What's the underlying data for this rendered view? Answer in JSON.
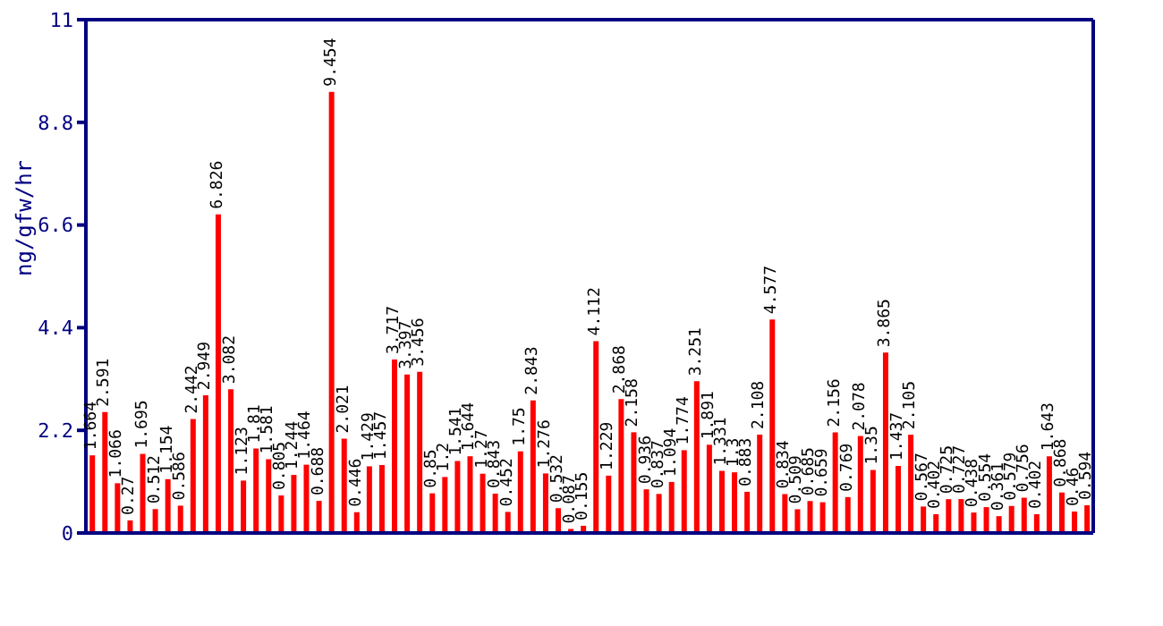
{
  "chart_data": {
    "type": "bar",
    "ylabel": "ng/gfw/hr",
    "color": "#ff0000",
    "categories": [
      null,
      null,
      null,
      null,
      null,
      null,
      null,
      null,
      null,
      null,
      null,
      null,
      null,
      null,
      null,
      null,
      null,
      null,
      null,
      null,
      null,
      null,
      null,
      null,
      null,
      null,
      null,
      null,
      null,
      null,
      null,
      null,
      null,
      null,
      null,
      null,
      null,
      null,
      null,
      null,
      null,
      null,
      null,
      null,
      null,
      null,
      null,
      null,
      null,
      null,
      null,
      null,
      null,
      null,
      null,
      null,
      null,
      null,
      null,
      null,
      null,
      null,
      null,
      null,
      null,
      null,
      null,
      null,
      null,
      null,
      null,
      null,
      null,
      null,
      null,
      null,
      null,
      null,
      null,
      null
    ],
    "values": [
      1.664,
      2.591,
      1.066,
      0.27,
      1.695,
      0.512,
      1.154,
      0.586,
      2.442,
      2.949,
      6.826,
      3.082,
      1.123,
      1.81,
      1.581,
      0.805,
      1.244,
      1.464,
      0.688,
      9.454,
      2.021,
      0.446,
      1.429,
      1.457,
      3.717,
      3.397,
      3.456,
      0.85,
      1.2,
      1.541,
      1.644,
      1.27,
      0.843,
      0.452,
      1.75,
      2.843,
      1.276,
      0.532,
      0.087,
      0.155,
      4.112,
      1.229,
      2.868,
      2.158,
      0.936,
      0.837,
      1.094,
      1.774,
      3.251,
      1.891,
      1.331,
      1.3,
      0.883,
      2.108,
      4.577,
      0.834,
      0.509,
      0.685,
      0.659,
      2.156,
      0.769,
      2.078,
      1.35,
      3.865,
      1.437,
      2.105,
      0.567,
      0.402,
      0.725,
      0.727,
      0.438,
      0.554,
      0.361,
      0.579,
      0.756,
      0.402,
      1.643,
      0.868,
      0.46,
      0.594
    ],
    "ylim": [
      0,
      11
    ],
    "yticks": [
      0,
      2.2,
      4.4,
      6.6,
      8.8,
      11
    ],
    "data_labels": true
  }
}
